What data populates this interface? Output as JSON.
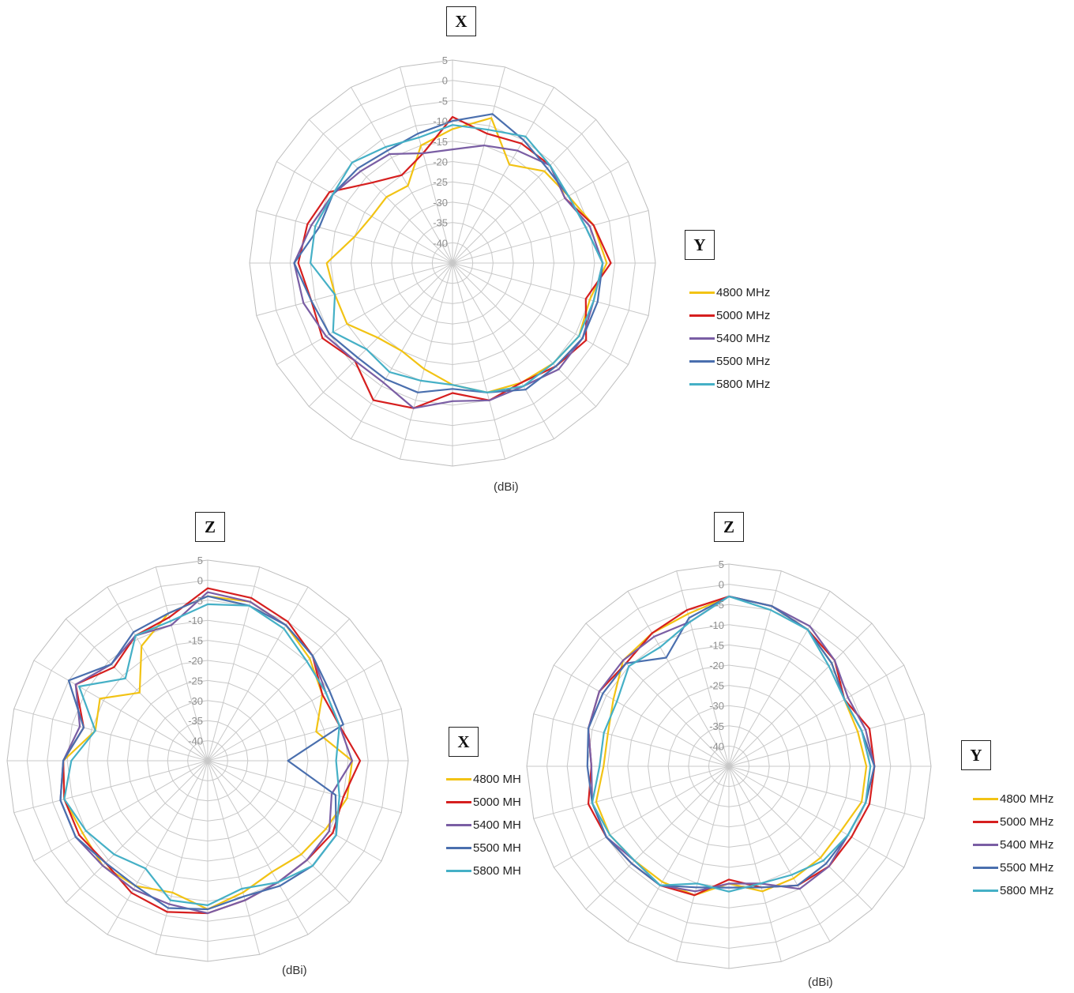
{
  "series_colors": {
    "4800": "#f2c314",
    "5000": "#d61f1f",
    "5400": "#7a5ea4",
    "5500": "#4a6fae",
    "5800": "#45b0c6"
  },
  "chart_data": [
    {
      "type": "radar",
      "axis_boxes": {
        "top": "X",
        "side": "Y"
      },
      "unit_label": "(dBi)",
      "rlim": [
        -45,
        5
      ],
      "r_ticks": [
        "5",
        "0",
        "-5",
        "-10",
        "-15",
        "-20",
        "-25",
        "-30",
        "-35",
        "-40"
      ],
      "categories_count": 24,
      "legend": [
        "4800 MHz",
        "5000 MHz",
        "5400 MHz",
        "5500 MHz",
        "5800 MHz"
      ],
      "series": [
        {
          "name": "4800 MHz",
          "values": [
            -12,
            -8,
            -17,
            -13,
            -12,
            -9,
            -7,
            -10,
            -9,
            -10,
            -11,
            -12,
            -15,
            -18,
            -20,
            -19,
            -15,
            -15,
            -14,
            -20,
            -22,
            -22,
            -23,
            -15
          ]
        },
        {
          "name": "5000 MHz",
          "values": [
            -9,
            -12,
            -11,
            -11,
            -13,
            -9,
            -6,
            -11,
            -7,
            -9,
            -11,
            -10,
            -13,
            -8,
            -6,
            -11,
            -8,
            -9,
            -7,
            -8,
            -10,
            -17,
            -20,
            -17
          ]
        },
        {
          "name": "5400 MHz",
          "values": [
            -17,
            -15,
            -13,
            -11,
            -13,
            -10,
            -8,
            -9,
            -8,
            -8,
            -10,
            -10,
            -11,
            -8,
            -11,
            -11,
            -9,
            -7,
            -6,
            -9,
            -11,
            -13,
            -14,
            -17
          ]
        },
        {
          "name": "5500 MHz",
          "values": [
            -10,
            -7,
            -10,
            -12,
            -12,
            -11,
            -8,
            -8,
            -8,
            -9,
            -9,
            -12,
            -14,
            -12,
            -12,
            -12,
            -10,
            -9,
            -6,
            -11,
            -11,
            -12,
            -13,
            -12
          ]
        },
        {
          "name": "5800 MHz",
          "values": [
            -11,
            -11,
            -9,
            -11,
            -12,
            -11,
            -8,
            -9,
            -9,
            -10,
            -10,
            -12,
            -15,
            -15,
            -14,
            -15,
            -11,
            -15,
            -10,
            -10,
            -11,
            -10,
            -12,
            -13
          ]
        }
      ]
    },
    {
      "type": "radar",
      "axis_boxes": {
        "top": "Z",
        "side": "X"
      },
      "unit_label": "(dBi)",
      "rlim": [
        -45,
        5
      ],
      "r_ticks": [
        "5",
        "0",
        "-5",
        "-10",
        "-15",
        "-20",
        "-25",
        "-30",
        "-35",
        "-40"
      ],
      "categories_count": 24,
      "legend": [
        "4800 MH",
        "5000 MH",
        "5400 MH",
        "5500 MH",
        "5800 MH"
      ],
      "series": [
        {
          "name": "4800 MH",
          "values": [
            -4,
            -4,
            -6,
            -9,
            -12,
            -17,
            -9,
            -9,
            -11,
            -12,
            -13,
            -11,
            -8,
            -11,
            -9,
            -8,
            -9,
            -8,
            -9,
            -16,
            -14,
            -21,
            -12,
            -7
          ]
        },
        {
          "name": "5000 MH",
          "values": [
            -2,
            -3,
            -5,
            -8,
            -12,
            -11,
            -7,
            -10,
            -9,
            -10,
            -10,
            -9,
            -7,
            -6,
            -7,
            -9,
            -8,
            -8,
            -9,
            -13,
            -7,
            -12,
            -9,
            -8
          ]
        },
        {
          "name": "5400 MH",
          "values": [
            -3,
            -4,
            -6,
            -8,
            -11,
            -11,
            -9,
            -13,
            -10,
            -10,
            -10,
            -9,
            -7,
            -8,
            -8,
            -8,
            -7,
            -7,
            -9,
            -12,
            -7,
            -11,
            -9,
            -10
          ]
        },
        {
          "name": "5500 MH",
          "values": [
            -4,
            -5,
            -6,
            -8,
            -10,
            -10,
            -25,
            -12,
            -8,
            -8,
            -9,
            -10,
            -8,
            -7,
            -9,
            -9,
            -7,
            -7,
            -9,
            -13,
            -5,
            -11,
            -8,
            -7
          ]
        },
        {
          "name": "5800 MH",
          "values": [
            -6,
            -5,
            -7,
            -10,
            -11,
            -11,
            -13,
            -11,
            -8,
            -8,
            -10,
            -12,
            -9,
            -9,
            -14,
            -12,
            -10,
            -8,
            -11,
            -16,
            -8,
            -16,
            -9,
            -9
          ]
        }
      ]
    },
    {
      "type": "radar",
      "axis_boxes": {
        "top": "Z",
        "side": "Y"
      },
      "unit_label": "(dBi)",
      "rlim": [
        -45,
        5
      ],
      "r_ticks": [
        "5",
        "0",
        "-5",
        "-10",
        "-15",
        "-20",
        "-25",
        "-30",
        "-35",
        "-40"
      ],
      "categories_count": 24,
      "legend": [
        "4800 MHz",
        "5000 MHz",
        "5400 MHz",
        "5500 MHz",
        "5800 MHz"
      ],
      "series": [
        {
          "name": "4800 MHz",
          "values": [
            -3,
            -4,
            -6,
            -9,
            -12,
            -12,
            -11,
            -11,
            -13,
            -13,
            -13,
            -13,
            -16,
            -12,
            -12,
            -12,
            -11,
            -11,
            -14,
            -14,
            -12,
            -8,
            -7,
            -6
          ]
        },
        {
          "name": "5000 MHz",
          "values": [
            -3,
            -4,
            -6,
            -8,
            -12,
            -9,
            -9,
            -9,
            -10,
            -10,
            -11,
            -14,
            -17,
            -12,
            -11,
            -11,
            -10,
            -9,
            -11,
            -9,
            -8,
            -9,
            -7,
            -5
          ]
        },
        {
          "name": "5400 MHz",
          "values": [
            -3,
            -4,
            -5,
            -8,
            -11,
            -10,
            -9,
            -10,
            -11,
            -10,
            -10,
            -15,
            -16,
            -13,
            -11,
            -12,
            -10,
            -10,
            -11,
            -9,
            -8,
            -8,
            -8,
            -8
          ]
        },
        {
          "name": "5500 MHz",
          "values": [
            -3,
            -4,
            -6,
            -9,
            -12,
            -11,
            -9,
            -10,
            -11,
            -11,
            -11,
            -14,
            -15,
            -14,
            -11,
            -11,
            -10,
            -10,
            -10,
            -9,
            -9,
            -9,
            -14,
            -7
          ]
        },
        {
          "name": "5800 MHz",
          "values": [
            -3,
            -5,
            -6,
            -10,
            -12,
            -11,
            -10,
            -10,
            -11,
            -12,
            -14,
            -15,
            -14,
            -15,
            -11,
            -12,
            -11,
            -10,
            -13,
            -13,
            -13,
            -10,
            -11,
            -8
          ]
        }
      ]
    }
  ]
}
